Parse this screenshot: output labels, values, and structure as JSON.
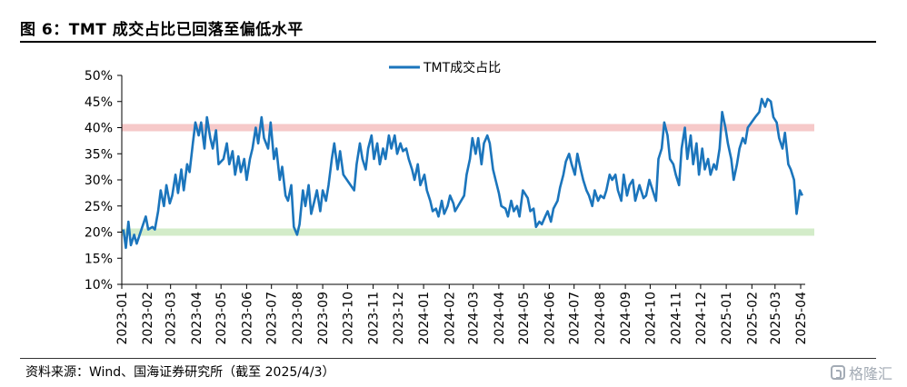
{
  "header": {
    "title": "图 6：TMT 成交占比已回落至偏低水平"
  },
  "footer": {
    "source": "资料来源：Wind、国海证券研究所（截至 2025/4/3）",
    "watermark": "格隆汇"
  },
  "colors": {
    "series": "#1b75bc",
    "upper_band": "#f6c9c9",
    "lower_band": "#d3ecc9",
    "axis": "#000000"
  },
  "chart_data": {
    "type": "line",
    "title": "",
    "xlabel": "",
    "ylabel": "",
    "ylim": [
      0.1,
      0.5
    ],
    "y_ticks": [
      "10%",
      "15%",
      "20%",
      "25%",
      "30%",
      "35%",
      "40%",
      "45%",
      "50%"
    ],
    "x_ticks": [
      "2023-01",
      "2023-02",
      "2023-03",
      "2023-04",
      "2023-05",
      "2023-06",
      "2023-07",
      "2023-08",
      "2023-09",
      "2023-10",
      "2023-11",
      "2023-12",
      "2024-01",
      "2024-02",
      "2024-03",
      "2024-04",
      "2024-05",
      "2024-06",
      "2024-07",
      "2024-08",
      "2024-09",
      "2024-10",
      "2024-11",
      "2024-12",
      "2025-01",
      "2025-02",
      "2025-03",
      "2025-04"
    ],
    "legend": "top-center",
    "reference_bands": [
      {
        "value": 0.4,
        "color": "#f6c9c9"
      },
      {
        "value": 0.2,
        "color": "#d3ecc9"
      }
    ],
    "series": [
      {
        "name": "TMT成交占比",
        "points": [
          [
            "2023-01-03",
            0.205
          ],
          [
            "2023-01-06",
            0.17
          ],
          [
            "2023-01-09",
            0.22
          ],
          [
            "2023-01-12",
            0.175
          ],
          [
            "2023-01-16",
            0.195
          ],
          [
            "2023-01-19",
            0.178
          ],
          [
            "2023-01-30",
            0.23
          ],
          [
            "2023-02-02",
            0.205
          ],
          [
            "2023-02-07",
            0.21
          ],
          [
            "2023-02-10",
            0.205
          ],
          [
            "2023-02-14",
            0.24
          ],
          [
            "2023-02-17",
            0.28
          ],
          [
            "2023-02-21",
            0.25
          ],
          [
            "2023-02-24",
            0.29
          ],
          [
            "2023-02-28",
            0.255
          ],
          [
            "2023-03-03",
            0.27
          ],
          [
            "2023-03-07",
            0.31
          ],
          [
            "2023-03-10",
            0.275
          ],
          [
            "2023-03-14",
            0.32
          ],
          [
            "2023-03-17",
            0.28
          ],
          [
            "2023-03-21",
            0.33
          ],
          [
            "2023-03-24",
            0.315
          ],
          [
            "2023-03-28",
            0.37
          ],
          [
            "2023-03-31",
            0.41
          ],
          [
            "2023-04-04",
            0.385
          ],
          [
            "2023-04-07",
            0.41
          ],
          [
            "2023-04-11",
            0.36
          ],
          [
            "2023-04-14",
            0.42
          ],
          [
            "2023-04-18",
            0.38
          ],
          [
            "2023-04-21",
            0.36
          ],
          [
            "2023-04-25",
            0.395
          ],
          [
            "2023-04-28",
            0.33
          ],
          [
            "2023-05-04",
            0.34
          ],
          [
            "2023-05-08",
            0.37
          ],
          [
            "2023-05-11",
            0.33
          ],
          [
            "2023-05-15",
            0.355
          ],
          [
            "2023-05-18",
            0.31
          ],
          [
            "2023-05-22",
            0.345
          ],
          [
            "2023-05-25",
            0.315
          ],
          [
            "2023-05-29",
            0.34
          ],
          [
            "2023-06-01",
            0.3
          ],
          [
            "2023-06-05",
            0.34
          ],
          [
            "2023-06-08",
            0.36
          ],
          [
            "2023-06-12",
            0.4
          ],
          [
            "2023-06-15",
            0.37
          ],
          [
            "2023-06-19",
            0.42
          ],
          [
            "2023-06-22",
            0.38
          ],
          [
            "2023-06-27",
            0.36
          ],
          [
            "2023-06-30",
            0.41
          ],
          [
            "2023-07-04",
            0.34
          ],
          [
            "2023-07-07",
            0.36
          ],
          [
            "2023-07-11",
            0.3
          ],
          [
            "2023-07-14",
            0.325
          ],
          [
            "2023-07-18",
            0.27
          ],
          [
            "2023-07-21",
            0.26
          ],
          [
            "2023-07-25",
            0.29
          ],
          [
            "2023-07-28",
            0.21
          ],
          [
            "2023-08-01",
            0.195
          ],
          [
            "2023-08-04",
            0.215
          ],
          [
            "2023-08-08",
            0.28
          ],
          [
            "2023-08-11",
            0.25
          ],
          [
            "2023-08-15",
            0.29
          ],
          [
            "2023-08-18",
            0.235
          ],
          [
            "2023-08-22",
            0.26
          ],
          [
            "2023-08-25",
            0.28
          ],
          [
            "2023-08-29",
            0.24
          ],
          [
            "2023-09-01",
            0.28
          ],
          [
            "2023-09-05",
            0.26
          ],
          [
            "2023-09-08",
            0.29
          ],
          [
            "2023-09-12",
            0.34
          ],
          [
            "2023-09-15",
            0.37
          ],
          [
            "2023-09-19",
            0.32
          ],
          [
            "2023-09-22",
            0.355
          ],
          [
            "2023-09-26",
            0.31
          ],
          [
            "2023-10-09",
            0.28
          ],
          [
            "2023-10-12",
            0.33
          ],
          [
            "2023-10-16",
            0.37
          ],
          [
            "2023-10-19",
            0.34
          ],
          [
            "2023-10-23",
            0.32
          ],
          [
            "2023-10-26",
            0.36
          ],
          [
            "2023-10-30",
            0.385
          ],
          [
            "2023-11-02",
            0.34
          ],
          [
            "2023-11-06",
            0.37
          ],
          [
            "2023-11-09",
            0.33
          ],
          [
            "2023-11-13",
            0.36
          ],
          [
            "2023-11-16",
            0.34
          ],
          [
            "2023-11-20",
            0.385
          ],
          [
            "2023-11-23",
            0.36
          ],
          [
            "2023-11-27",
            0.385
          ],
          [
            "2023-11-30",
            0.35
          ],
          [
            "2023-12-04",
            0.37
          ],
          [
            "2023-12-07",
            0.355
          ],
          [
            "2023-12-11",
            0.36
          ],
          [
            "2023-12-14",
            0.34
          ],
          [
            "2023-12-18",
            0.32
          ],
          [
            "2023-12-21",
            0.3
          ],
          [
            "2023-12-25",
            0.33
          ],
          [
            "2023-12-28",
            0.29
          ],
          [
            "2024-01-02",
            0.31
          ],
          [
            "2024-01-05",
            0.28
          ],
          [
            "2024-01-09",
            0.26
          ],
          [
            "2024-01-12",
            0.24
          ],
          [
            "2024-01-16",
            0.245
          ],
          [
            "2024-01-19",
            0.23
          ],
          [
            "2024-01-23",
            0.26
          ],
          [
            "2024-01-26",
            0.235
          ],
          [
            "2024-01-30",
            0.25
          ],
          [
            "2024-02-02",
            0.27
          ],
          [
            "2024-02-06",
            0.255
          ],
          [
            "2024-02-08",
            0.24
          ],
          [
            "2024-02-19",
            0.27
          ],
          [
            "2024-02-22",
            0.31
          ],
          [
            "2024-02-26",
            0.34
          ],
          [
            "2024-02-29",
            0.38
          ],
          [
            "2024-03-04",
            0.35
          ],
          [
            "2024-03-07",
            0.38
          ],
          [
            "2024-03-11",
            0.33
          ],
          [
            "2024-03-14",
            0.37
          ],
          [
            "2024-03-18",
            0.385
          ],
          [
            "2024-03-21",
            0.37
          ],
          [
            "2024-03-25",
            0.32
          ],
          [
            "2024-03-28",
            0.3
          ],
          [
            "2024-04-01",
            0.275
          ],
          [
            "2024-04-04",
            0.25
          ],
          [
            "2024-04-09",
            0.245
          ],
          [
            "2024-04-12",
            0.23
          ],
          [
            "2024-04-16",
            0.26
          ],
          [
            "2024-04-19",
            0.24
          ],
          [
            "2024-04-23",
            0.25
          ],
          [
            "2024-04-26",
            0.23
          ],
          [
            "2024-04-30",
            0.28
          ],
          [
            "2024-05-06",
            0.265
          ],
          [
            "2024-05-09",
            0.24
          ],
          [
            "2024-05-13",
            0.245
          ],
          [
            "2024-05-16",
            0.21
          ],
          [
            "2024-05-20",
            0.22
          ],
          [
            "2024-05-23",
            0.215
          ],
          [
            "2024-05-27",
            0.23
          ],
          [
            "2024-05-30",
            0.24
          ],
          [
            "2024-06-03",
            0.22
          ],
          [
            "2024-06-06",
            0.245
          ],
          [
            "2024-06-11",
            0.26
          ],
          [
            "2024-06-14",
            0.285
          ],
          [
            "2024-06-18",
            0.31
          ],
          [
            "2024-06-21",
            0.335
          ],
          [
            "2024-06-25",
            0.35
          ],
          [
            "2024-06-28",
            0.33
          ],
          [
            "2024-07-02",
            0.31
          ],
          [
            "2024-07-05",
            0.35
          ],
          [
            "2024-07-09",
            0.32
          ],
          [
            "2024-07-12",
            0.3
          ],
          [
            "2024-07-16",
            0.28
          ],
          [
            "2024-07-19",
            0.27
          ],
          [
            "2024-07-23",
            0.25
          ],
          [
            "2024-07-26",
            0.28
          ],
          [
            "2024-07-30",
            0.26
          ],
          [
            "2024-08-02",
            0.27
          ],
          [
            "2024-08-06",
            0.265
          ],
          [
            "2024-08-09",
            0.28
          ],
          [
            "2024-08-13",
            0.31
          ],
          [
            "2024-08-16",
            0.3
          ],
          [
            "2024-08-20",
            0.31
          ],
          [
            "2024-08-23",
            0.28
          ],
          [
            "2024-08-27",
            0.26
          ],
          [
            "2024-08-30",
            0.31
          ],
          [
            "2024-09-03",
            0.27
          ],
          [
            "2024-09-06",
            0.29
          ],
          [
            "2024-09-10",
            0.3
          ],
          [
            "2024-09-13",
            0.26
          ],
          [
            "2024-09-18",
            0.29
          ],
          [
            "2024-09-23",
            0.265
          ],
          [
            "2024-09-26",
            0.27
          ],
          [
            "2024-09-30",
            0.3
          ],
          [
            "2024-10-08",
            0.26
          ],
          [
            "2024-10-11",
            0.34
          ],
          [
            "2024-10-15",
            0.36
          ],
          [
            "2024-10-18",
            0.41
          ],
          [
            "2024-10-22",
            0.385
          ],
          [
            "2024-10-25",
            0.34
          ],
          [
            "2024-10-29",
            0.33
          ],
          [
            "2024-11-01",
            0.31
          ],
          [
            "2024-11-05",
            0.29
          ],
          [
            "2024-11-08",
            0.36
          ],
          [
            "2024-11-12",
            0.4
          ],
          [
            "2024-11-15",
            0.34
          ],
          [
            "2024-11-19",
            0.385
          ],
          [
            "2024-11-22",
            0.33
          ],
          [
            "2024-11-26",
            0.37
          ],
          [
            "2024-11-29",
            0.31
          ],
          [
            "2024-12-03",
            0.36
          ],
          [
            "2024-12-06",
            0.32
          ],
          [
            "2024-12-10",
            0.34
          ],
          [
            "2024-12-13",
            0.31
          ],
          [
            "2024-12-17",
            0.33
          ],
          [
            "2024-12-20",
            0.32
          ],
          [
            "2024-12-24",
            0.36
          ],
          [
            "2024-12-27",
            0.43
          ],
          [
            "2024-12-31",
            0.4
          ],
          [
            "2025-01-03",
            0.37
          ],
          [
            "2025-01-07",
            0.34
          ],
          [
            "2025-01-10",
            0.3
          ],
          [
            "2025-01-14",
            0.33
          ],
          [
            "2025-01-17",
            0.36
          ],
          [
            "2025-01-21",
            0.38
          ],
          [
            "2025-01-24",
            0.37
          ],
          [
            "2025-01-27",
            0.4
          ],
          [
            "2025-02-05",
            0.42
          ],
          [
            "2025-02-10",
            0.43
          ],
          [
            "2025-02-13",
            0.455
          ],
          [
            "2025-02-17",
            0.44
          ],
          [
            "2025-02-20",
            0.455
          ],
          [
            "2025-02-24",
            0.45
          ],
          [
            "2025-02-27",
            0.42
          ],
          [
            "2025-03-03",
            0.41
          ],
          [
            "2025-03-06",
            0.38
          ],
          [
            "2025-03-10",
            0.36
          ],
          [
            "2025-03-13",
            0.39
          ],
          [
            "2025-03-17",
            0.33
          ],
          [
            "2025-03-20",
            0.32
          ],
          [
            "2025-03-24",
            0.3
          ],
          [
            "2025-03-27",
            0.235
          ],
          [
            "2025-03-31",
            0.28
          ],
          [
            "2025-04-03",
            0.27
          ]
        ]
      }
    ]
  }
}
